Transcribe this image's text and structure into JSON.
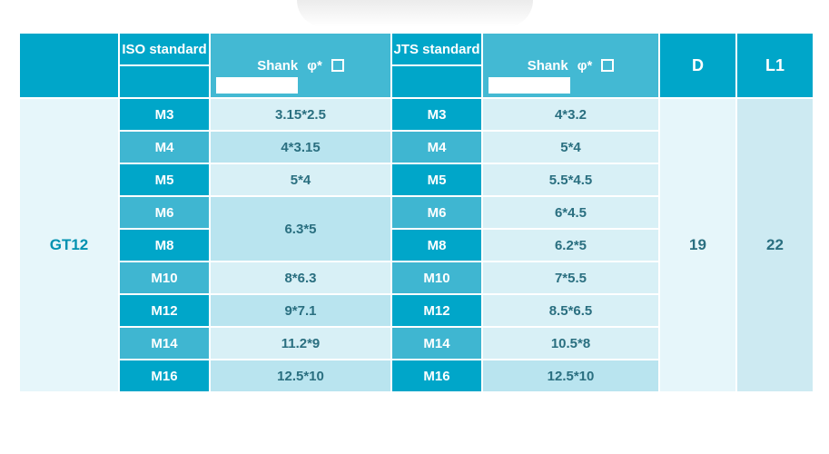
{
  "header": {
    "iso_label": "ISO standard",
    "jts_label": "JTS standard",
    "shank_label": "Shank",
    "phi_star": "φ*",
    "d_label": "D",
    "l1_label": "L1"
  },
  "row_label": "GT12",
  "d_value": "19",
  "l1_value": "22",
  "rows": [
    {
      "iso_size": "M3",
      "iso_val": "3.15*2.5",
      "jts_size": "M3",
      "jts_val": "4*3.2",
      "iso_shade": "a",
      "jts_shade": "a",
      "size_shade": "dark"
    },
    {
      "iso_size": "M4",
      "iso_val": "4*3.15",
      "jts_size": "M4",
      "jts_val": "5*4",
      "iso_shade": "b",
      "jts_shade": "a",
      "size_shade": "mid"
    },
    {
      "iso_size": "M5",
      "iso_val": "5*4",
      "jts_size": "M5",
      "jts_val": "5.5*4.5",
      "iso_shade": "a",
      "jts_shade": "a",
      "size_shade": "dark"
    },
    {
      "iso_size": "M6",
      "iso_val": "6.3*5",
      "jts_size": "M6",
      "jts_val": "6*4.5",
      "iso_shade": "b",
      "jts_shade": "a",
      "size_shade": "mid",
      "iso_rowspan": 2
    },
    {
      "iso_size": "M8",
      "iso_val": null,
      "jts_size": "M8",
      "jts_val": "6.2*5",
      "iso_shade": "b",
      "jts_shade": "a",
      "size_shade": "dark"
    },
    {
      "iso_size": "M10",
      "iso_val": "8*6.3",
      "jts_size": "M10",
      "jts_val": "7*5.5",
      "iso_shade": "a",
      "jts_shade": "a",
      "size_shade": "mid"
    },
    {
      "iso_size": "M12",
      "iso_val": "9*7.1",
      "jts_size": "M12",
      "jts_val": "8.5*6.5",
      "iso_shade": "b",
      "jts_shade": "a",
      "size_shade": "dark"
    },
    {
      "iso_size": "M14",
      "iso_val": "11.2*9",
      "jts_size": "M14",
      "jts_val": "10.5*8",
      "iso_shade": "a",
      "jts_shade": "a",
      "size_shade": "mid"
    },
    {
      "iso_size": "M16",
      "iso_val": "12.5*10",
      "jts_size": "M16",
      "jts_val": "12.5*10",
      "iso_shade": "b",
      "jts_shade": "b",
      "size_shade": "dark"
    }
  ],
  "colors": {
    "accent": "#00a6c9",
    "accent_mid": "#43b9d3",
    "val_a": "#d8f0f6",
    "val_b": "#b9e4ef",
    "panel_light": "#e6f6fa",
    "panel_mid": "#cdeaf2",
    "text_teal": "#0091b0"
  }
}
